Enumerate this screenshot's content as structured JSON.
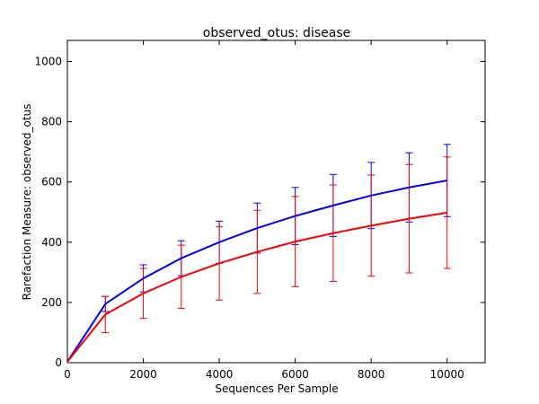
{
  "chart_data": {
    "type": "line",
    "title": "observed_otus: disease",
    "xlabel": "Sequences Per Sample",
    "ylabel": "Rarefaction Measure: observed_otus",
    "xlim": [
      0,
      11000
    ],
    "ylim": [
      0,
      1070
    ],
    "xticks": [
      0,
      2000,
      4000,
      6000,
      8000,
      10000
    ],
    "yticks": [
      0,
      200,
      400,
      600,
      800,
      1000
    ],
    "grid": false,
    "x": [
      10,
      1000,
      2000,
      3000,
      4000,
      5000,
      6000,
      7000,
      8000,
      9000,
      10000
    ],
    "series": [
      {
        "color": "#0000ff",
        "values": [
          5,
          195,
          280,
          347,
          400,
          447,
          487,
          522,
          555,
          582,
          605
        ],
        "err": [
          0,
          25,
          45,
          58,
          70,
          83,
          95,
          103,
          110,
          115,
          120
        ]
      },
      {
        "color": "#ff0000",
        "values": [
          5,
          160,
          230,
          285,
          330,
          368,
          402,
          430,
          455,
          478,
          498
        ],
        "err": [
          0,
          60,
          83,
          105,
          122,
          138,
          150,
          160,
          168,
          180,
          185
        ]
      }
    ]
  }
}
